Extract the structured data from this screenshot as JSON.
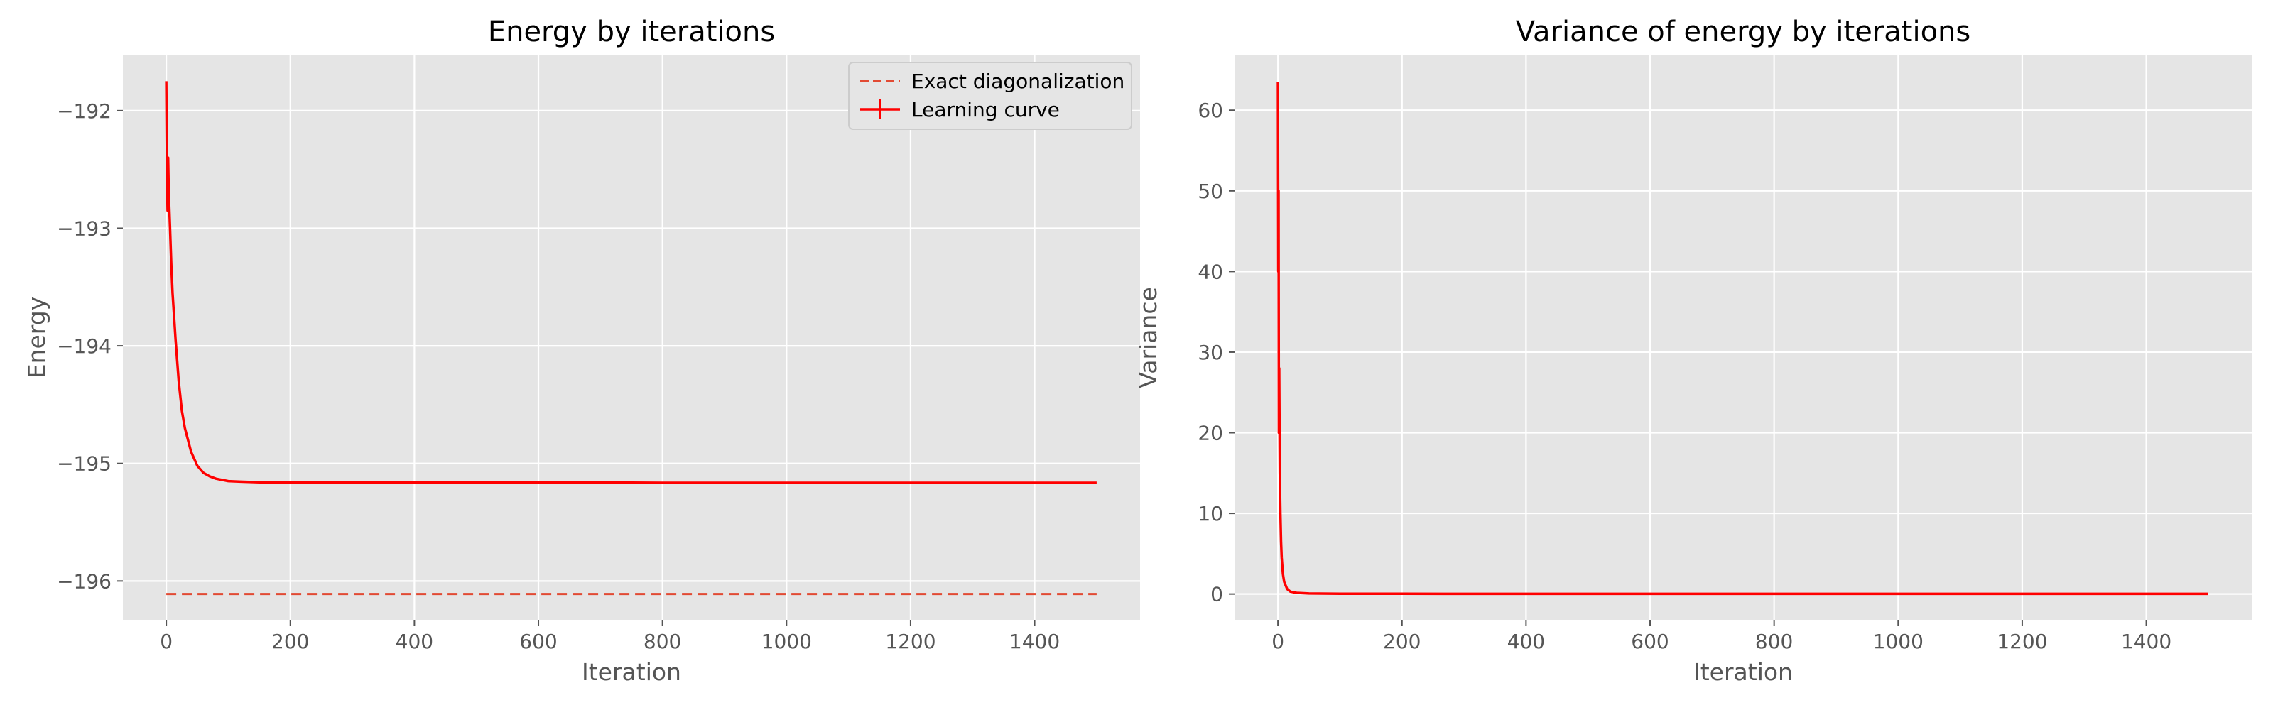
{
  "chart_data": [
    {
      "type": "line",
      "title": "Energy by iterations",
      "xlabel": "Iteration",
      "ylabel": "Energy",
      "xlim": [
        -70,
        1570
      ],
      "ylim": [
        -196.33,
        -191.53
      ],
      "xticks": [
        0,
        200,
        400,
        600,
        800,
        1000,
        1200,
        1400
      ],
      "yticks": [
        -196,
        -195,
        -194,
        -193,
        -192
      ],
      "ytick_labels": [
        "−196",
        "−195",
        "−194",
        "−193",
        "−192"
      ],
      "grid": true,
      "legend": "top-right",
      "series": [
        {
          "name": "Exact diagonalization",
          "style": "dashed",
          "color": "#e24a33",
          "x": [
            0,
            1500
          ],
          "y": [
            -196.11,
            -196.11
          ]
        },
        {
          "name": "Learning curve",
          "style": "solid-with-errorbars",
          "color": "#ff0000",
          "x": [
            0,
            1,
            2,
            3,
            4,
            6,
            8,
            10,
            15,
            20,
            25,
            30,
            40,
            50,
            60,
            70,
            80,
            100,
            120,
            150,
            200,
            300,
            400,
            600,
            800,
            1000,
            1200,
            1400,
            1500
          ],
          "y": [
            -191.75,
            -192.5,
            -192.85,
            -192.4,
            -192.7,
            -193.0,
            -193.3,
            -193.55,
            -193.95,
            -194.3,
            -194.55,
            -194.7,
            -194.9,
            -195.02,
            -195.08,
            -195.11,
            -195.13,
            -195.15,
            -195.155,
            -195.16,
            -195.16,
            -195.16,
            -195.16,
            -195.16,
            -195.165,
            -195.165,
            -195.165,
            -195.165,
            -195.165
          ]
        }
      ]
    },
    {
      "type": "line",
      "title": "Variance of energy by iterations",
      "xlabel": "Iteration",
      "ylabel": "Variance",
      "xlim": [
        -70,
        1570
      ],
      "ylim": [
        -3.2,
        66.8
      ],
      "xticks": [
        0,
        200,
        400,
        600,
        800,
        1000,
        1200,
        1400
      ],
      "yticks": [
        0,
        10,
        20,
        30,
        40,
        50,
        60
      ],
      "ytick_labels": [
        "0",
        "10",
        "20",
        "30",
        "40",
        "50",
        "60"
      ],
      "grid": true,
      "series": [
        {
          "color": "#ff0000",
          "x": [
            0,
            0.5,
            1,
            1.5,
            2,
            3,
            4,
            5,
            6,
            8,
            10,
            15,
            20,
            30,
            50,
            100,
            200,
            600,
            1000,
            1500
          ],
          "y": [
            63.5,
            40,
            50,
            20,
            28,
            15,
            10,
            6.5,
            4.5,
            2.5,
            1.5,
            0.6,
            0.3,
            0.15,
            0.07,
            0.04,
            0.03,
            0.02,
            0.02,
            0.02
          ]
        }
      ]
    }
  ]
}
